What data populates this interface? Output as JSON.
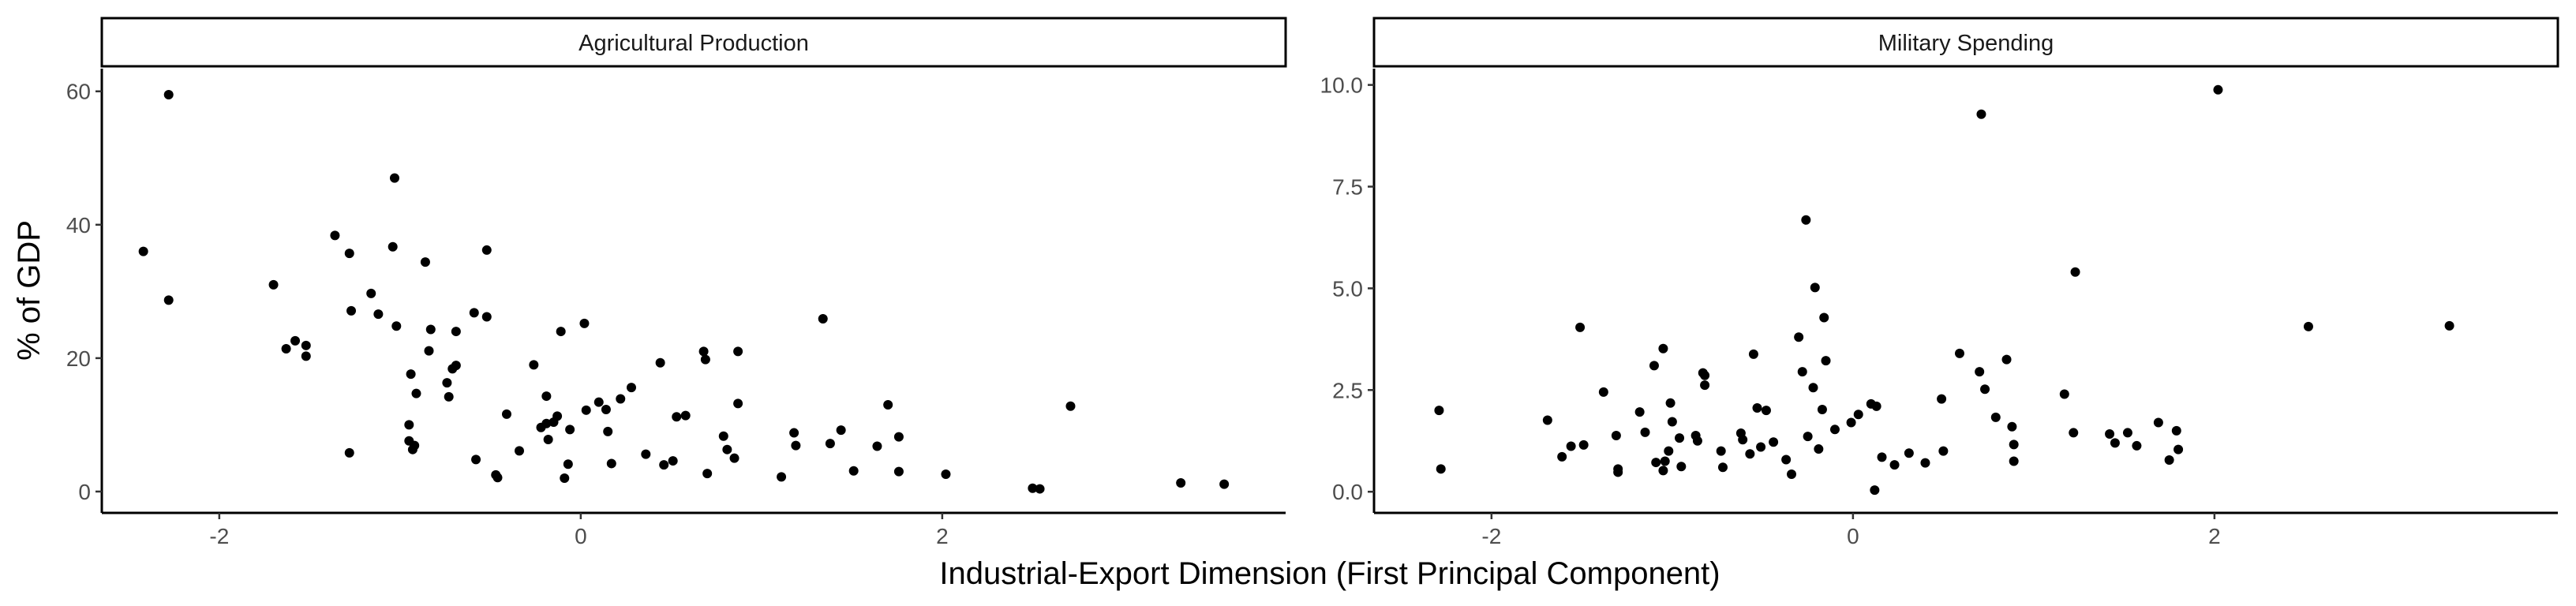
{
  "chart_data": {
    "type": "scatter",
    "xlabel": "Industrial-Export Dimension (First Principal Component)",
    "ylabel": "% of GDP",
    "x_ticks": [
      -2,
      0,
      2
    ],
    "x_tick_labels": [
      "-2",
      "0",
      "2"
    ],
    "xlim": [
      -2.65,
      3.9
    ],
    "point_color": "#000000",
    "grid": false,
    "panels": [
      {
        "strip_label": "Agricultural Production",
        "ylim": [
          -3.2,
          63.4
        ],
        "y_ticks": [
          0,
          20,
          40,
          60
        ],
        "y_tick_labels": [
          "0",
          "20",
          "40",
          "60"
        ],
        "points": [
          [
            -2.42,
            36.0
          ],
          [
            -2.28,
            59.5
          ],
          [
            -2.28,
            28.7
          ],
          [
            -1.7,
            31.0
          ],
          [
            -1.63,
            21.4
          ],
          [
            -1.58,
            22.6
          ],
          [
            -1.52,
            21.9
          ],
          [
            -1.52,
            20.3
          ],
          [
            -1.36,
            38.4
          ],
          [
            -1.28,
            35.7
          ],
          [
            -1.27,
            27.1
          ],
          [
            -1.28,
            5.8
          ],
          [
            -1.16,
            29.7
          ],
          [
            -1.12,
            26.6
          ],
          [
            -1.04,
            36.7
          ],
          [
            -1.03,
            47.0
          ],
          [
            -1.02,
            24.8
          ],
          [
            -0.95,
            10.0
          ],
          [
            -0.95,
            7.6
          ],
          [
            -0.93,
            6.3
          ],
          [
            -0.92,
            6.9
          ],
          [
            -0.94,
            17.6
          ],
          [
            -0.91,
            14.7
          ],
          [
            -0.86,
            34.4
          ],
          [
            -0.84,
            21.1
          ],
          [
            -0.83,
            24.3
          ],
          [
            -0.74,
            16.3
          ],
          [
            -0.73,
            14.2
          ],
          [
            -0.71,
            18.4
          ],
          [
            -0.69,
            18.9
          ],
          [
            -0.69,
            24.0
          ],
          [
            -0.59,
            26.8
          ],
          [
            -0.58,
            4.8
          ],
          [
            -0.52,
            36.2
          ],
          [
            -0.52,
            26.2
          ],
          [
            -0.47,
            2.5
          ],
          [
            -0.46,
            2.1
          ],
          [
            -0.41,
            11.6
          ],
          [
            -0.34,
            6.1
          ],
          [
            -0.26,
            19.0
          ],
          [
            -0.22,
            9.6
          ],
          [
            -0.19,
            10.2
          ],
          [
            -0.19,
            14.3
          ],
          [
            -0.18,
            7.8
          ],
          [
            -0.15,
            10.4
          ],
          [
            -0.13,
            11.3
          ],
          [
            -0.11,
            24.0
          ],
          [
            -0.09,
            2.0
          ],
          [
            -0.07,
            4.1
          ],
          [
            -0.06,
            9.3
          ],
          [
            0.02,
            25.2
          ],
          [
            0.03,
            12.2
          ],
          [
            0.1,
            13.4
          ],
          [
            0.14,
            12.3
          ],
          [
            0.15,
            9.0
          ],
          [
            0.17,
            4.2
          ],
          [
            0.22,
            13.9
          ],
          [
            0.28,
            15.6
          ],
          [
            0.36,
            5.6
          ],
          [
            0.44,
            19.3
          ],
          [
            0.46,
            4.0
          ],
          [
            0.51,
            4.6
          ],
          [
            0.53,
            11.2
          ],
          [
            0.58,
            11.4
          ],
          [
            0.68,
            21.0
          ],
          [
            0.69,
            19.8
          ],
          [
            0.7,
            2.7
          ],
          [
            0.79,
            8.3
          ],
          [
            0.81,
            6.3
          ],
          [
            0.85,
            5.0
          ],
          [
            0.87,
            21.0
          ],
          [
            0.87,
            13.2
          ],
          [
            1.11,
            2.2
          ],
          [
            1.18,
            8.8
          ],
          [
            1.19,
            6.9
          ],
          [
            1.34,
            25.9
          ],
          [
            1.38,
            7.2
          ],
          [
            1.44,
            9.2
          ],
          [
            1.51,
            3.1
          ],
          [
            1.64,
            6.8
          ],
          [
            1.7,
            13.0
          ],
          [
            1.76,
            8.2
          ],
          [
            1.76,
            3.0
          ],
          [
            2.02,
            2.6
          ],
          [
            2.5,
            0.5
          ],
          [
            2.54,
            0.4
          ],
          [
            2.71,
            12.8
          ],
          [
            3.32,
            1.3
          ],
          [
            3.56,
            1.1
          ]
        ]
      },
      {
        "strip_label": "Military Spending",
        "ylim": [
          -0.52,
          10.4
        ],
        "y_ticks": [
          0.0,
          2.5,
          5.0,
          7.5,
          10.0
        ],
        "y_tick_labels": [
          "0.0",
          "2.5",
          "5.0",
          "7.5",
          "10.0"
        ],
        "points": [
          [
            -2.29,
            2.0
          ],
          [
            -2.28,
            0.56
          ],
          [
            -1.69,
            1.76
          ],
          [
            -1.61,
            0.86
          ],
          [
            -1.56,
            1.12
          ],
          [
            -1.51,
            4.04
          ],
          [
            -1.49,
            1.15
          ],
          [
            -1.38,
            2.45
          ],
          [
            -1.31,
            1.38
          ],
          [
            -1.3,
            0.56
          ],
          [
            -1.3,
            0.48
          ],
          [
            -1.18,
            1.96
          ],
          [
            -1.15,
            1.46
          ],
          [
            -1.1,
            3.1
          ],
          [
            -1.09,
            0.72
          ],
          [
            -1.05,
            3.52
          ],
          [
            -1.05,
            0.52
          ],
          [
            -1.04,
            0.75
          ],
          [
            -1.02,
            1.0
          ],
          [
            -1.01,
            2.18
          ],
          [
            -1.0,
            1.72
          ],
          [
            -0.96,
            1.32
          ],
          [
            -0.95,
            0.62
          ],
          [
            -0.87,
            1.38
          ],
          [
            -0.86,
            1.25
          ],
          [
            -0.83,
            2.92
          ],
          [
            -0.82,
            2.62
          ],
          [
            -0.82,
            2.86
          ],
          [
            -0.73,
            1.0
          ],
          [
            -0.72,
            0.6
          ],
          [
            -0.62,
            1.44
          ],
          [
            -0.61,
            1.28
          ],
          [
            -0.57,
            0.93
          ],
          [
            -0.55,
            3.38
          ],
          [
            -0.53,
            2.06
          ],
          [
            -0.51,
            1.1
          ],
          [
            -0.48,
            2.0
          ],
          [
            -0.44,
            1.22
          ],
          [
            -0.37,
            0.79
          ],
          [
            -0.34,
            0.43
          ],
          [
            -0.3,
            3.8
          ],
          [
            -0.28,
            2.95
          ],
          [
            -0.26,
            6.68
          ],
          [
            -0.25,
            1.36
          ],
          [
            -0.22,
            2.56
          ],
          [
            -0.21,
            5.02
          ],
          [
            -0.19,
            1.05
          ],
          [
            -0.17,
            2.02
          ],
          [
            -0.16,
            4.28
          ],
          [
            -0.15,
            3.22
          ],
          [
            -0.1,
            1.53
          ],
          [
            -0.01,
            1.7
          ],
          [
            0.03,
            1.9
          ],
          [
            0.1,
            2.16
          ],
          [
            0.12,
            0.04
          ],
          [
            0.13,
            2.1
          ],
          [
            0.16,
            0.85
          ],
          [
            0.23,
            0.66
          ],
          [
            0.31,
            0.95
          ],
          [
            0.4,
            0.71
          ],
          [
            0.49,
            2.28
          ],
          [
            0.5,
            1.0
          ],
          [
            0.59,
            3.4
          ],
          [
            0.7,
            2.95
          ],
          [
            0.71,
            9.28
          ],
          [
            0.73,
            2.52
          ],
          [
            0.79,
            1.83
          ],
          [
            0.85,
            3.25
          ],
          [
            0.88,
            1.6
          ],
          [
            0.89,
            1.16
          ],
          [
            0.89,
            0.75
          ],
          [
            1.17,
            2.4
          ],
          [
            1.22,
            1.45
          ],
          [
            1.23,
            5.4
          ],
          [
            1.42,
            1.42
          ],
          [
            1.45,
            1.2
          ],
          [
            1.52,
            1.45
          ],
          [
            1.57,
            1.13
          ],
          [
            1.69,
            1.7
          ],
          [
            1.75,
            0.78
          ],
          [
            1.79,
            1.5
          ],
          [
            1.8,
            1.04
          ],
          [
            2.02,
            9.88
          ],
          [
            2.52,
            4.06
          ],
          [
            3.3,
            4.08
          ]
        ]
      }
    ]
  }
}
